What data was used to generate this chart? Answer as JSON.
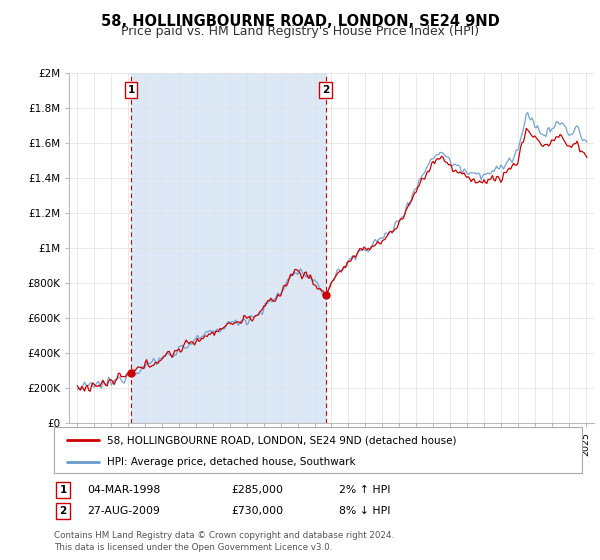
{
  "title": "58, HOLLINGBOURNE ROAD, LONDON, SE24 9ND",
  "subtitle": "Price paid vs. HM Land Registry's House Price Index (HPI)",
  "title_fontsize": 10.5,
  "subtitle_fontsize": 9,
  "hpi_color": "#6699CC",
  "price_color": "#CC0000",
  "shade_color": "#DCE8F5",
  "marker1_year": 1998.17,
  "marker2_year": 2009.65,
  "marker1_price": 285000,
  "marker2_price": 730000,
  "marker1_date": "04-MAR-1998",
  "marker2_date": "27-AUG-2009",
  "marker1_hpi": "2% ↑ HPI",
  "marker2_hpi": "8% ↓ HPI",
  "legend_line1": "58, HOLLINGBOURNE ROAD, LONDON, SE24 9ND (detached house)",
  "legend_line2": "HPI: Average price, detached house, Southwark",
  "footer": "Contains HM Land Registry data © Crown copyright and database right 2024.\nThis data is licensed under the Open Government Licence v3.0.",
  "ylim": [
    0,
    2000000
  ],
  "yticks": [
    0,
    200000,
    400000,
    600000,
    800000,
    1000000,
    1200000,
    1400000,
    1600000,
    1800000,
    2000000
  ],
  "ytick_labels": [
    "£0",
    "£200K",
    "£400K",
    "£600K",
    "£800K",
    "£1M",
    "£1.2M",
    "£1.4M",
    "£1.6M",
    "£1.8M",
    "£2M"
  ],
  "xmin": 1994.5,
  "xmax": 2025.5,
  "background_color": "#FFFFFF",
  "grid_color": "#E0E0E0"
}
